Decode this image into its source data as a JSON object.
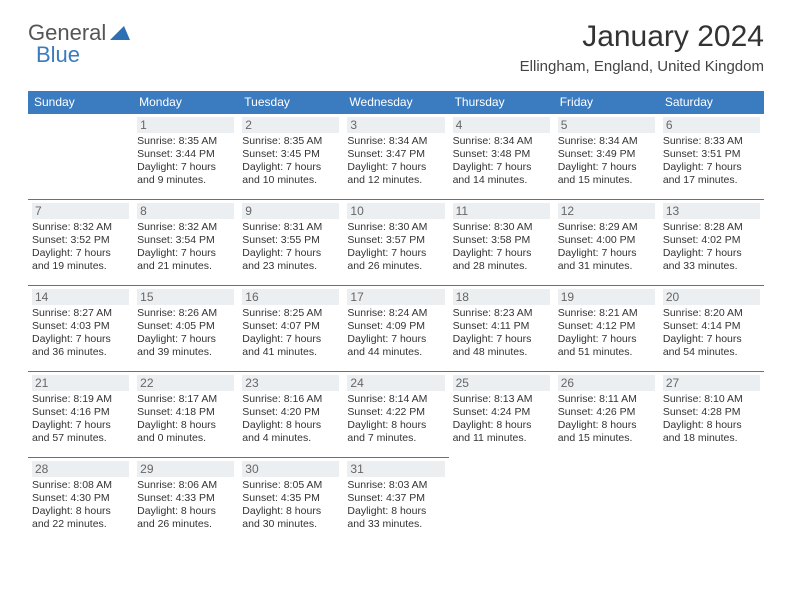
{
  "brand": {
    "part1": "General",
    "part2": "Blue"
  },
  "title": "January 2024",
  "location": "Ellingham, England, United Kingdom",
  "colors": {
    "header_bg": "#3b7bbf",
    "header_fg": "#ffffff",
    "row_border": "#3b7bbf",
    "daynum_bg": "#eceff1",
    "text": "#333333"
  },
  "day_headers": [
    "Sunday",
    "Monday",
    "Tuesday",
    "Wednesday",
    "Thursday",
    "Friday",
    "Saturday"
  ],
  "weeks": [
    [
      null,
      {
        "n": "1",
        "sr": "8:35 AM",
        "ss": "3:44 PM",
        "dl": "7 hours and 9 minutes."
      },
      {
        "n": "2",
        "sr": "8:35 AM",
        "ss": "3:45 PM",
        "dl": "7 hours and 10 minutes."
      },
      {
        "n": "3",
        "sr": "8:34 AM",
        "ss": "3:47 PM",
        "dl": "7 hours and 12 minutes."
      },
      {
        "n": "4",
        "sr": "8:34 AM",
        "ss": "3:48 PM",
        "dl": "7 hours and 14 minutes."
      },
      {
        "n": "5",
        "sr": "8:34 AM",
        "ss": "3:49 PM",
        "dl": "7 hours and 15 minutes."
      },
      {
        "n": "6",
        "sr": "8:33 AM",
        "ss": "3:51 PM",
        "dl": "7 hours and 17 minutes."
      }
    ],
    [
      {
        "n": "7",
        "sr": "8:32 AM",
        "ss": "3:52 PM",
        "dl": "7 hours and 19 minutes."
      },
      {
        "n": "8",
        "sr": "8:32 AM",
        "ss": "3:54 PM",
        "dl": "7 hours and 21 minutes."
      },
      {
        "n": "9",
        "sr": "8:31 AM",
        "ss": "3:55 PM",
        "dl": "7 hours and 23 minutes."
      },
      {
        "n": "10",
        "sr": "8:30 AM",
        "ss": "3:57 PM",
        "dl": "7 hours and 26 minutes."
      },
      {
        "n": "11",
        "sr": "8:30 AM",
        "ss": "3:58 PM",
        "dl": "7 hours and 28 minutes."
      },
      {
        "n": "12",
        "sr": "8:29 AM",
        "ss": "4:00 PM",
        "dl": "7 hours and 31 minutes."
      },
      {
        "n": "13",
        "sr": "8:28 AM",
        "ss": "4:02 PM",
        "dl": "7 hours and 33 minutes."
      }
    ],
    [
      {
        "n": "14",
        "sr": "8:27 AM",
        "ss": "4:03 PM",
        "dl": "7 hours and 36 minutes."
      },
      {
        "n": "15",
        "sr": "8:26 AM",
        "ss": "4:05 PM",
        "dl": "7 hours and 39 minutes."
      },
      {
        "n": "16",
        "sr": "8:25 AM",
        "ss": "4:07 PM",
        "dl": "7 hours and 41 minutes."
      },
      {
        "n": "17",
        "sr": "8:24 AM",
        "ss": "4:09 PM",
        "dl": "7 hours and 44 minutes."
      },
      {
        "n": "18",
        "sr": "8:23 AM",
        "ss": "4:11 PM",
        "dl": "7 hours and 48 minutes."
      },
      {
        "n": "19",
        "sr": "8:21 AM",
        "ss": "4:12 PM",
        "dl": "7 hours and 51 minutes."
      },
      {
        "n": "20",
        "sr": "8:20 AM",
        "ss": "4:14 PM",
        "dl": "7 hours and 54 minutes."
      }
    ],
    [
      {
        "n": "21",
        "sr": "8:19 AM",
        "ss": "4:16 PM",
        "dl": "7 hours and 57 minutes."
      },
      {
        "n": "22",
        "sr": "8:17 AM",
        "ss": "4:18 PM",
        "dl": "8 hours and 0 minutes."
      },
      {
        "n": "23",
        "sr": "8:16 AM",
        "ss": "4:20 PM",
        "dl": "8 hours and 4 minutes."
      },
      {
        "n": "24",
        "sr": "8:14 AM",
        "ss": "4:22 PM",
        "dl": "8 hours and 7 minutes."
      },
      {
        "n": "25",
        "sr": "8:13 AM",
        "ss": "4:24 PM",
        "dl": "8 hours and 11 minutes."
      },
      {
        "n": "26",
        "sr": "8:11 AM",
        "ss": "4:26 PM",
        "dl": "8 hours and 15 minutes."
      },
      {
        "n": "27",
        "sr": "8:10 AM",
        "ss": "4:28 PM",
        "dl": "8 hours and 18 minutes."
      }
    ],
    [
      {
        "n": "28",
        "sr": "8:08 AM",
        "ss": "4:30 PM",
        "dl": "8 hours and 22 minutes."
      },
      {
        "n": "29",
        "sr": "8:06 AM",
        "ss": "4:33 PM",
        "dl": "8 hours and 26 minutes."
      },
      {
        "n": "30",
        "sr": "8:05 AM",
        "ss": "4:35 PM",
        "dl": "8 hours and 30 minutes."
      },
      {
        "n": "31",
        "sr": "8:03 AM",
        "ss": "4:37 PM",
        "dl": "8 hours and 33 minutes."
      },
      null,
      null,
      null
    ]
  ],
  "labels": {
    "sunrise": "Sunrise: ",
    "sunset": "Sunset: ",
    "daylight": "Daylight: "
  }
}
